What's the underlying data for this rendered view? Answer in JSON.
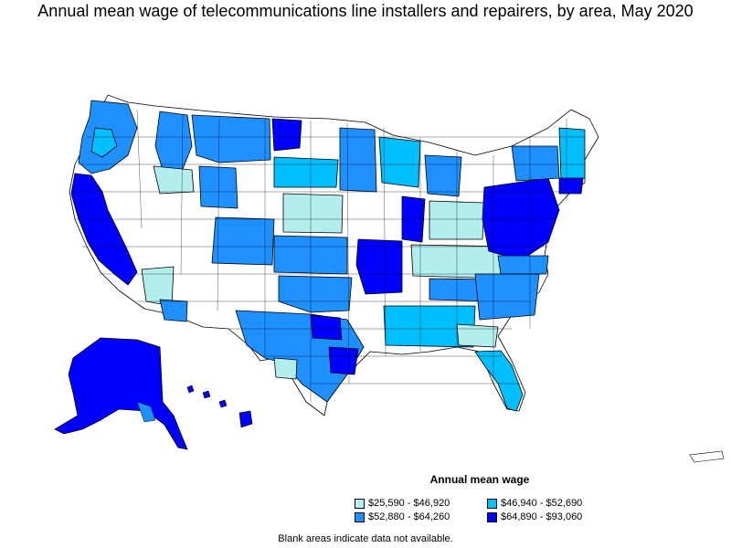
{
  "title": "Annual mean wage of telecommunications line installers and repairers, by area, May 2020",
  "legend": {
    "title": "Annual mean wage",
    "items": [
      {
        "label": "$25,590 - $46,920",
        "color": "#b2eeee"
      },
      {
        "label": "$46,940 - $52,690",
        "color": "#00bfff"
      },
      {
        "label": "$52,880 - $64,260",
        "color": "#1e90ff"
      },
      {
        "label": "$64,890 - $93,060",
        "color": "#0000ff"
      }
    ]
  },
  "footnote": "Blank areas indicate data not available."
}
